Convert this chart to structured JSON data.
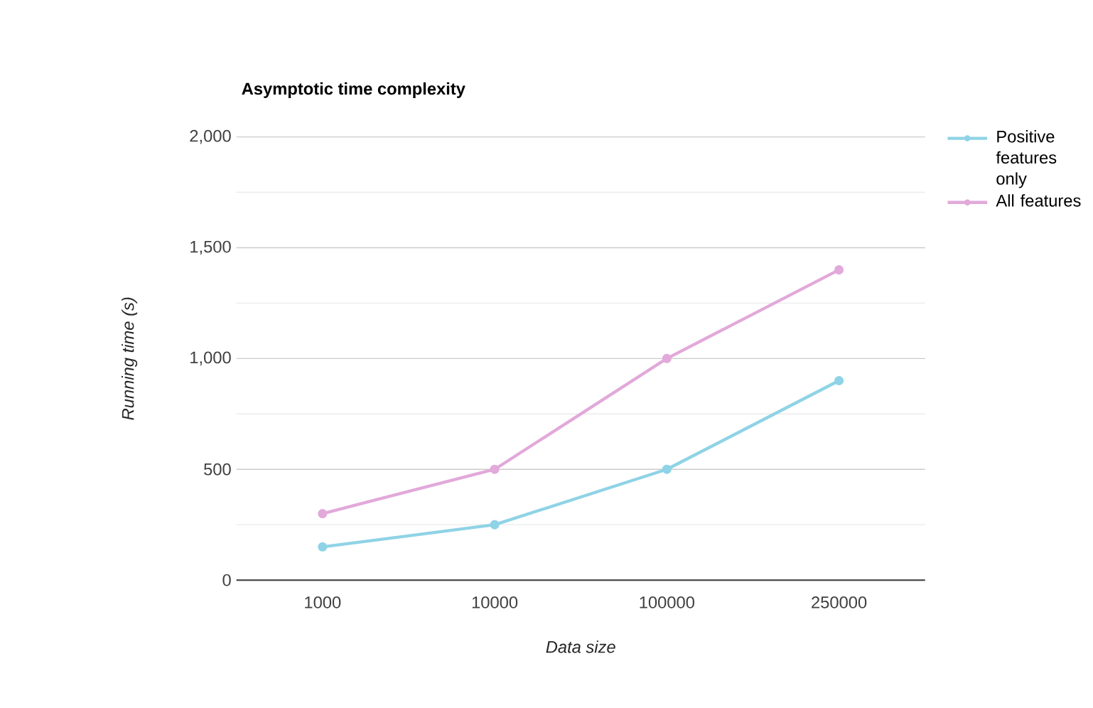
{
  "chart_data": {
    "type": "line",
    "title": "Asymptotic time complexity",
    "xlabel": "Data size",
    "ylabel": "Running time (s)",
    "categories": [
      "1000",
      "10000",
      "100000",
      "250000"
    ],
    "series": [
      {
        "name": "Positive features only",
        "color": "#8fd3e6",
        "values": [
          150,
          250,
          500,
          900
        ]
      },
      {
        "name": "All features",
        "color": "#e2a9da",
        "values": [
          300,
          500,
          1000,
          1400
        ]
      }
    ],
    "ylim": [
      0,
      2000
    ],
    "yticks": [
      0,
      {
        "value": 500,
        "label": "500"
      },
      {
        "value": 1000,
        "label": "1,000"
      },
      {
        "value": 1500,
        "label": "1,500"
      },
      {
        "value": 2000,
        "label": "2,000"
      }
    ],
    "grid": "y",
    "legend": "right",
    "marker": "circle",
    "line_style": "solid"
  }
}
